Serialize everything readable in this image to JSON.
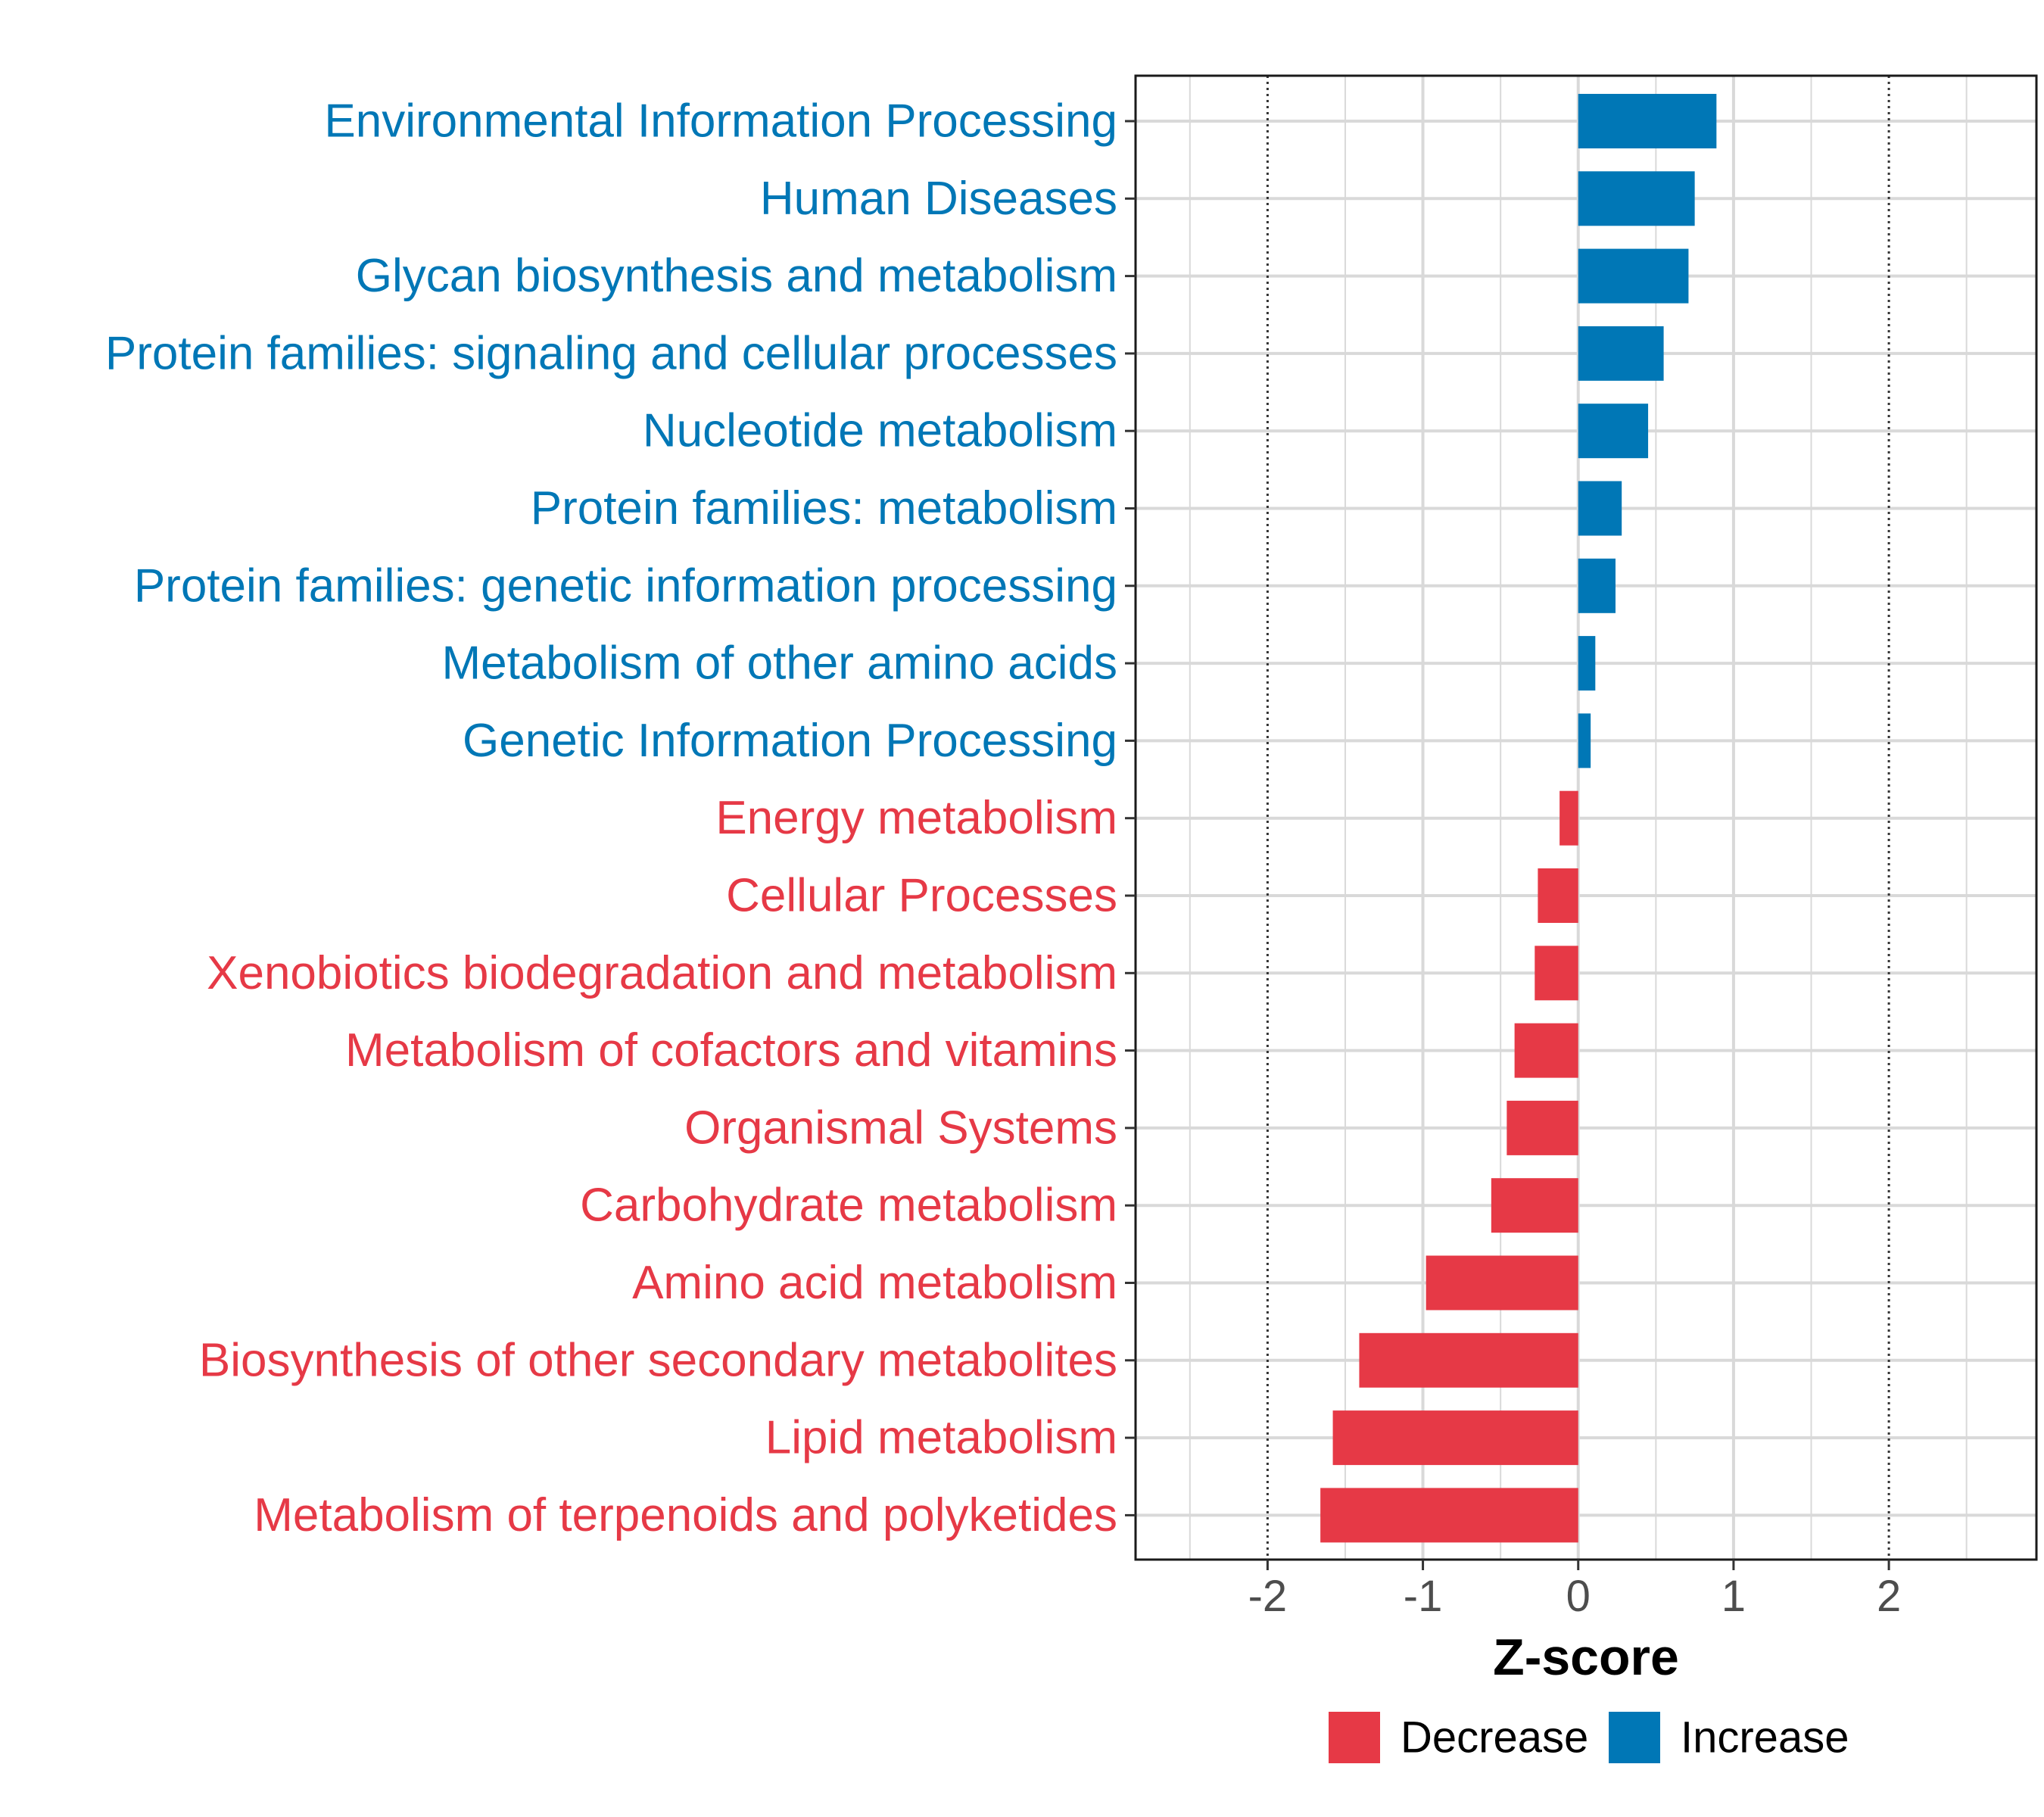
{
  "chart_data": {
    "type": "bar",
    "orientation": "horizontal",
    "title": "",
    "xlabel": "Z-score",
    "ylabel": "",
    "xlim": [
      -2.85,
      2.95
    ],
    "xticks": [
      -2,
      -1,
      0,
      1,
      2
    ],
    "reference_lines": [
      -2,
      2
    ],
    "grid": true,
    "categories": [
      "Environmental Information Processing",
      "Human Diseases",
      "Glycan biosynthesis and metabolism",
      "Protein families: signaling and cellular processes",
      "Nucleotide metabolism",
      "Protein families: metabolism",
      "Protein families: genetic information processing",
      "Metabolism of other amino acids",
      "Genetic Information Processing",
      "Energy metabolism",
      "Cellular Processes",
      "Xenobiotics biodegradation and metabolism",
      "Metabolism of cofactors and vitamins",
      "Organismal Systems",
      "Carbohydrate metabolism",
      "Amino acid metabolism",
      "Biosynthesis of other secondary metabolites",
      "Lipid metabolism",
      "Metabolism of terpenoids and polyketides"
    ],
    "values": [
      0.89,
      0.75,
      0.71,
      0.55,
      0.45,
      0.28,
      0.24,
      0.11,
      0.08,
      -0.12,
      -0.26,
      -0.28,
      -0.41,
      -0.46,
      -0.56,
      -0.98,
      -1.41,
      -1.58,
      -1.66
    ],
    "groups": [
      "Increase",
      "Increase",
      "Increase",
      "Increase",
      "Increase",
      "Increase",
      "Increase",
      "Increase",
      "Increase",
      "Decrease",
      "Decrease",
      "Decrease",
      "Decrease",
      "Decrease",
      "Decrease",
      "Decrease",
      "Decrease",
      "Decrease",
      "Decrease"
    ],
    "legend": {
      "position": "bottom",
      "entries": [
        {
          "label": "Decrease",
          "color": "#E63946"
        },
        {
          "label": "Increase",
          "color": "#0077B6"
        }
      ]
    }
  }
}
